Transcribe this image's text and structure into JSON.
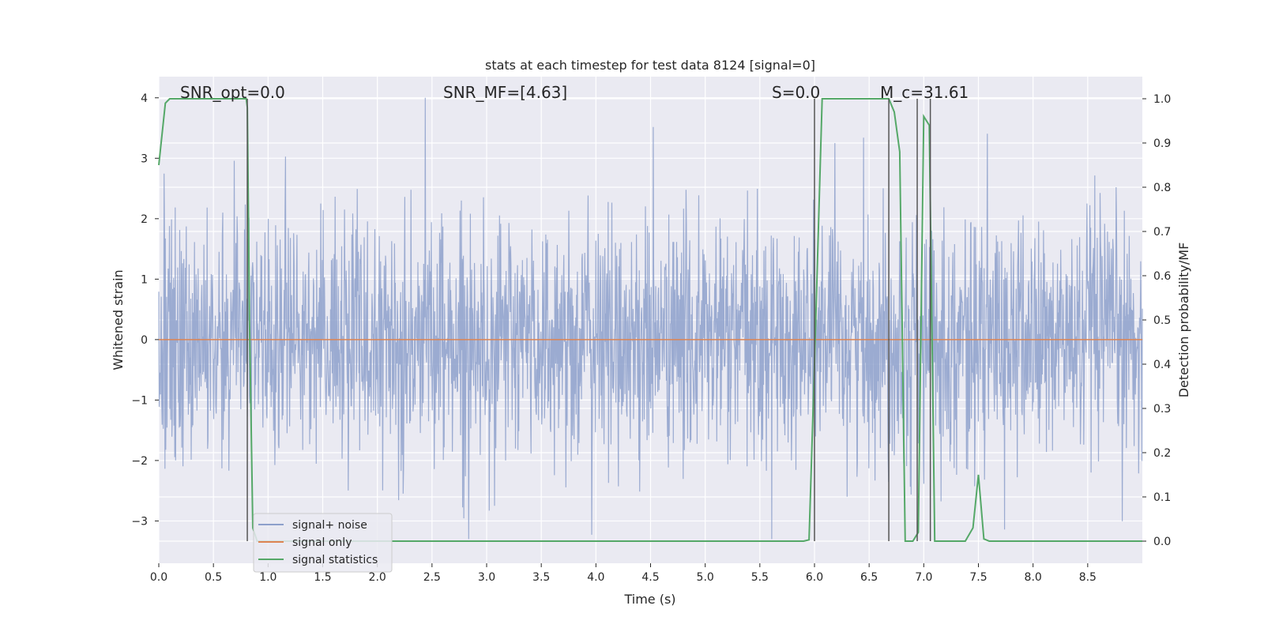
{
  "chart_data": {
    "type": "line",
    "title": "stats at each timestep for test data 8124 [signal=0]",
    "xlabel": "Time (s)",
    "ylabel_left": "Whitened strain",
    "ylabel_right": "Detection probability/MF",
    "xlim": [
      0.0,
      9.0
    ],
    "ylim_left": [
      -3.7,
      4.35
    ],
    "ylim_right": [
      -0.05,
      1.05
    ],
    "x_ticks": [
      "0.0",
      "0.5",
      "1.0",
      "1.5",
      "2.0",
      "2.5",
      "3.0",
      "3.5",
      "4.0",
      "4.5",
      "5.0",
      "5.5",
      "6.0",
      "6.5",
      "7.0",
      "7.5",
      "8.0",
      "8.5"
    ],
    "y_ticks_left": [
      "4",
      "3",
      "2",
      "1",
      "0",
      "−1",
      "−2",
      "−3"
    ],
    "y_ticks_right": [
      "1.0",
      "0.9",
      "0.8",
      "0.7",
      "0.6",
      "0.5",
      "0.4",
      "0.3",
      "0.2",
      "0.1",
      "0.0"
    ],
    "grid": true,
    "legend_position": "lower-left",
    "annotations": [
      {
        "id": "snr-opt",
        "text": "SNR_opt=0.0"
      },
      {
        "id": "snr-mf",
        "text": "SNR_MF=[4.63]"
      },
      {
        "id": "s-val",
        "text": "S=0.0"
      },
      {
        "id": "mc-val",
        "text": "M_c=31.61"
      }
    ],
    "series": [
      {
        "name": "signal+ noise",
        "axis": "left",
        "color": "#8da0cb",
        "description_values": "whitened strain noise, approx Gaussian, range about -3.3 to 4.0",
        "envelope_max": 4.0,
        "envelope_min": -3.3
      },
      {
        "name": "signal only",
        "axis": "left",
        "color": "#dd8452",
        "x": [
          0.0,
          9.0
        ],
        "y": [
          0.0,
          0.0
        ]
      },
      {
        "name": "signal statistics",
        "axis": "right",
        "color": "#55a868",
        "x": [
          0.0,
          0.06,
          0.1,
          0.2,
          0.4,
          0.6,
          0.8,
          0.81,
          0.83,
          0.86,
          0.9,
          1.5,
          3.0,
          5.0,
          5.8,
          5.9,
          5.95,
          6.0,
          6.07,
          6.3,
          6.6,
          6.68,
          6.73,
          6.78,
          6.83,
          6.9,
          6.95,
          7.0,
          7.05,
          7.1,
          7.15,
          7.25,
          7.38,
          7.45,
          7.5,
          7.55,
          7.6,
          8.0,
          8.5,
          9.0
        ],
        "y": [
          0.85,
          0.99,
          1.0,
          1.0,
          1.0,
          1.0,
          1.0,
          0.98,
          0.5,
          0.03,
          0.0,
          0.0,
          0.0,
          0.0,
          0.0,
          0.0,
          0.003,
          0.4,
          1.0,
          1.0,
          1.0,
          1.0,
          0.97,
          0.88,
          0.0,
          0.0,
          0.02,
          0.96,
          0.94,
          0.0,
          0.0,
          0.0,
          0.0,
          0.03,
          0.15,
          0.005,
          0.0,
          0.0,
          0.0,
          0.0
        ]
      }
    ],
    "vertical_lines": [
      {
        "x": 0.81,
        "color": "#555555"
      },
      {
        "x": 6.0,
        "color": "#555555"
      },
      {
        "x": 6.68,
        "color": "#555555"
      },
      {
        "x": 6.94,
        "color": "#555555"
      },
      {
        "x": 7.06,
        "color": "#555555"
      }
    ]
  }
}
